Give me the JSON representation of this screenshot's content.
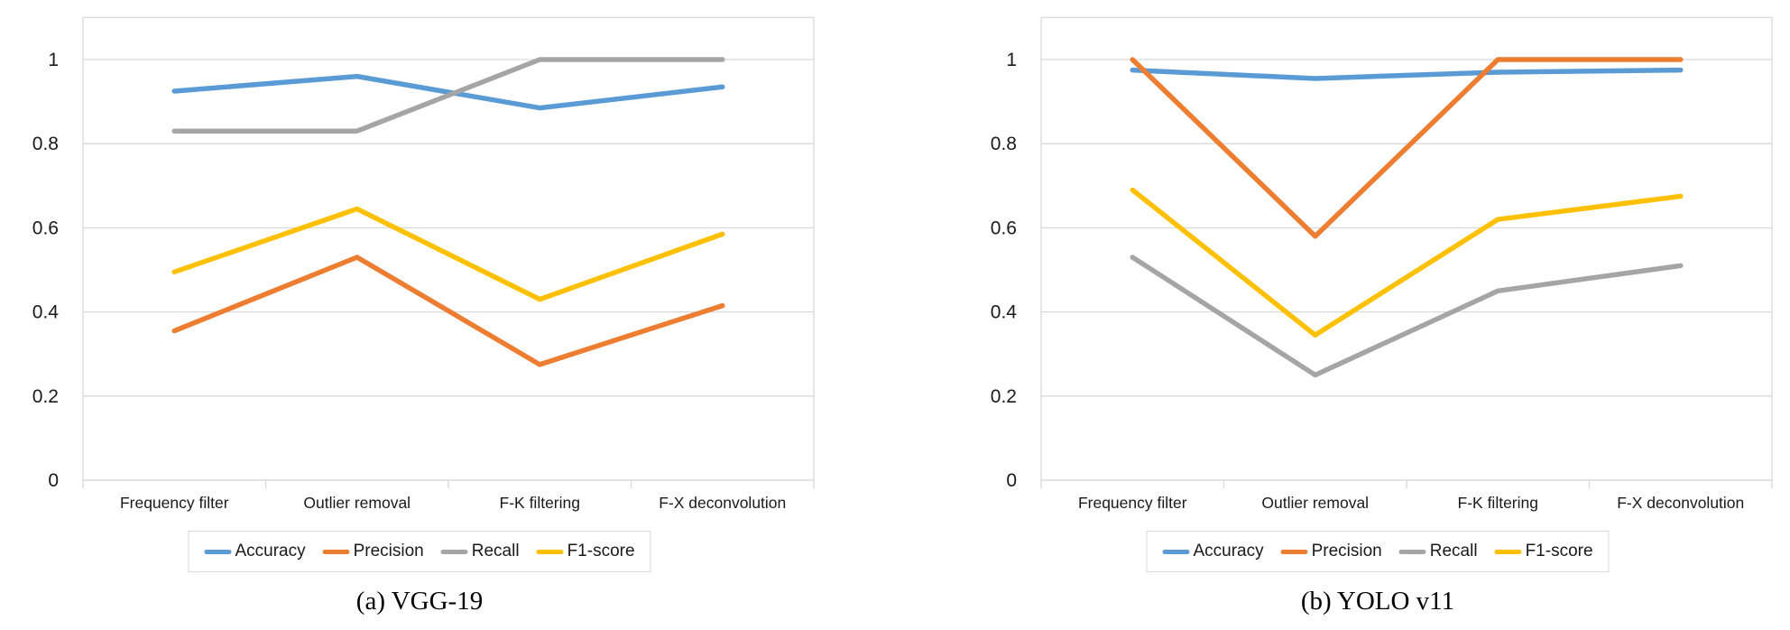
{
  "figure": {
    "description": "Two side-by-side line charts comparing evaluation metrics across seismic processing steps",
    "background": "#ffffff"
  },
  "colors": {
    "accuracy": "#5B9BD5",
    "precision": "#ED7D31",
    "recall": "#A5A5A5",
    "f1_score": "#FFC000",
    "gridline": "#D9D9D9",
    "text": "#1a1a1a"
  },
  "chart_data": [
    {
      "type": "line",
      "caption": "(a) VGG-19",
      "categories": [
        "Frequency filter",
        "Outlier removal",
        "F-K filtering",
        "F-X deconvolution"
      ],
      "xlabel": "",
      "ylabel": "",
      "ylim": [
        0,
        1.1
      ],
      "y_ticks": [
        0,
        0.2,
        0.4,
        0.6,
        0.8,
        1
      ],
      "y_tick_labels": [
        "0",
        "0.2",
        "0.4",
        "0.6",
        "0.8",
        "1"
      ],
      "grid": true,
      "legend_position": "bottom",
      "series": [
        {
          "name": "Accuracy",
          "color": "#5B9BD5",
          "values": [
            0.925,
            0.96,
            0.885,
            0.935
          ]
        },
        {
          "name": "Precision",
          "color": "#ED7D31",
          "values": [
            0.355,
            0.53,
            0.275,
            0.415
          ]
        },
        {
          "name": "Recall",
          "color": "#A5A5A5",
          "values": [
            0.83,
            0.83,
            1.0,
            1.0
          ]
        },
        {
          "name": "F1-score",
          "color": "#FFC000",
          "values": [
            0.495,
            0.645,
            0.43,
            0.585
          ]
        }
      ]
    },
    {
      "type": "line",
      "caption": "(b) YOLO v11",
      "categories": [
        "Frequency filter",
        "Outlier removal",
        "F-K filtering",
        "F-X deconvolution"
      ],
      "xlabel": "",
      "ylabel": "",
      "ylim": [
        0,
        1.1
      ],
      "y_ticks": [
        0,
        0.2,
        0.4,
        0.6,
        0.8,
        1
      ],
      "y_tick_labels": [
        "0",
        "0.2",
        "0.4",
        "0.6",
        "0.8",
        "1"
      ],
      "grid": true,
      "legend_position": "bottom",
      "series": [
        {
          "name": "Accuracy",
          "color": "#5B9BD5",
          "values": [
            0.975,
            0.955,
            0.97,
            0.975
          ]
        },
        {
          "name": "Precision",
          "color": "#ED7D31",
          "values": [
            1.0,
            0.58,
            1.0,
            1.0
          ]
        },
        {
          "name": "Recall",
          "color": "#A5A5A5",
          "values": [
            0.53,
            0.25,
            0.45,
            0.51
          ]
        },
        {
          "name": "F1-score",
          "color": "#FFC000",
          "values": [
            0.69,
            0.345,
            0.62,
            0.675
          ]
        }
      ]
    }
  ]
}
